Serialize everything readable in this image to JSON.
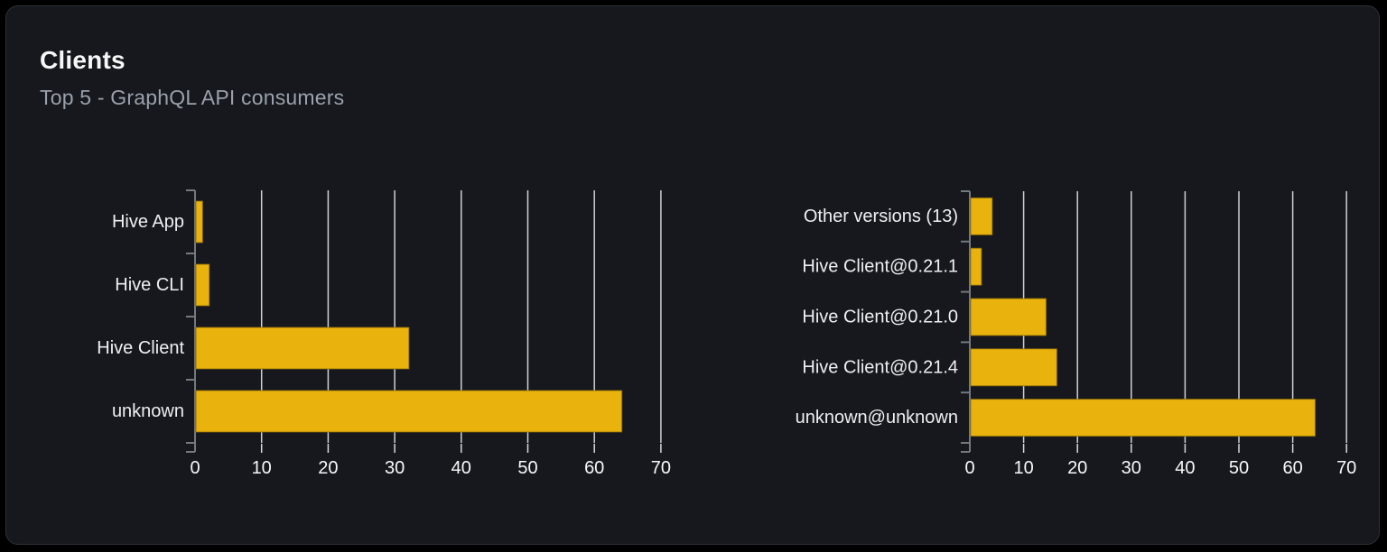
{
  "header": {
    "title": "Clients",
    "subtitle": "Top 5 - GraphQL API consumers"
  },
  "colors": {
    "page_bg": "#000000",
    "card_bg": "#16181d",
    "card_border": "#2d3036",
    "title": "#f7f7f8",
    "subtitle": "#9aa1ab",
    "bar_fill": "#e9b20c",
    "bar_stroke": "#8a6a06",
    "grid_line": "#d5dae1",
    "axis_line": "#74797f",
    "tick_label": "#f6f8fa",
    "category_label": "#edeff2"
  },
  "chart_data": [
    {
      "type": "bar",
      "orientation": "horizontal",
      "name": "clients-by-name",
      "categories": [
        "Hive App",
        "Hive CLI",
        "Hive Client",
        "unknown"
      ],
      "values": [
        1,
        2,
        32,
        64
      ],
      "x_ticks": [
        0,
        10,
        20,
        30,
        40,
        50,
        60,
        70
      ],
      "xlim": [
        0,
        73
      ],
      "grid": "vertical",
      "legend": "none"
    },
    {
      "type": "bar",
      "orientation": "horizontal",
      "name": "clients-by-version",
      "categories": [
        "Other versions (13)",
        "Hive Client@0.21.1",
        "Hive Client@0.21.0",
        "Hive Client@0.21.4",
        "unknown@unknown"
      ],
      "values": [
        4,
        2,
        14,
        16,
        64
      ],
      "x_ticks": [
        0,
        10,
        20,
        30,
        40,
        50,
        60,
        70
      ],
      "xlim": [
        0,
        73
      ],
      "grid": "vertical",
      "legend": "none"
    }
  ]
}
